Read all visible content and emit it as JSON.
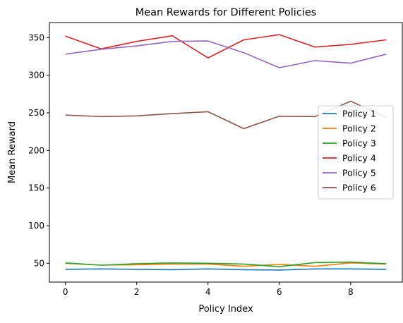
{
  "chart_data": {
    "type": "line",
    "title": "Mean Rewards for Different Policies",
    "xlabel": "Policy Index",
    "ylabel": "Mean Reward",
    "x": [
      0,
      1,
      2,
      3,
      4,
      5,
      6,
      7,
      8,
      9
    ],
    "xlim": [
      -0.45,
      9.45
    ],
    "ylim": [
      25,
      370
    ],
    "xticks": [
      0,
      2,
      4,
      6,
      8
    ],
    "yticks": [
      50,
      100,
      150,
      200,
      250,
      300,
      350
    ],
    "grid": false,
    "legend_position": "center-right",
    "series": [
      {
        "name": "Policy 1",
        "color": "#1f77b4",
        "values": [
          42,
          42.5,
          42,
          41.5,
          42.5,
          41.5,
          41,
          42.5,
          42.5,
          42
        ]
      },
      {
        "name": "Policy 2",
        "color": "#ff7f0e",
        "values": [
          50,
          47.5,
          48,
          49,
          49,
          46,
          48.5,
          46,
          50.5,
          49
        ]
      },
      {
        "name": "Policy 3",
        "color": "#2ca02c",
        "values": [
          50.5,
          47.5,
          49.5,
          50.5,
          50,
          49,
          45.5,
          51,
          51.5,
          49.5
        ]
      },
      {
        "name": "Policy 4",
        "color": "#d62728",
        "values": [
          352,
          335,
          345,
          352.5,
          323,
          347,
          354,
          337.5,
          341,
          347
        ]
      },
      {
        "name": "Policy 5",
        "color": "#9467bd",
        "values": [
          328,
          334.5,
          339,
          345,
          345.5,
          330,
          310,
          319.5,
          316,
          328
        ]
      },
      {
        "name": "Policy 6",
        "color": "#8c564b",
        "values": [
          247,
          245,
          246,
          249,
          251.5,
          229,
          245.5,
          245,
          265.5,
          244
        ]
      }
    ]
  }
}
